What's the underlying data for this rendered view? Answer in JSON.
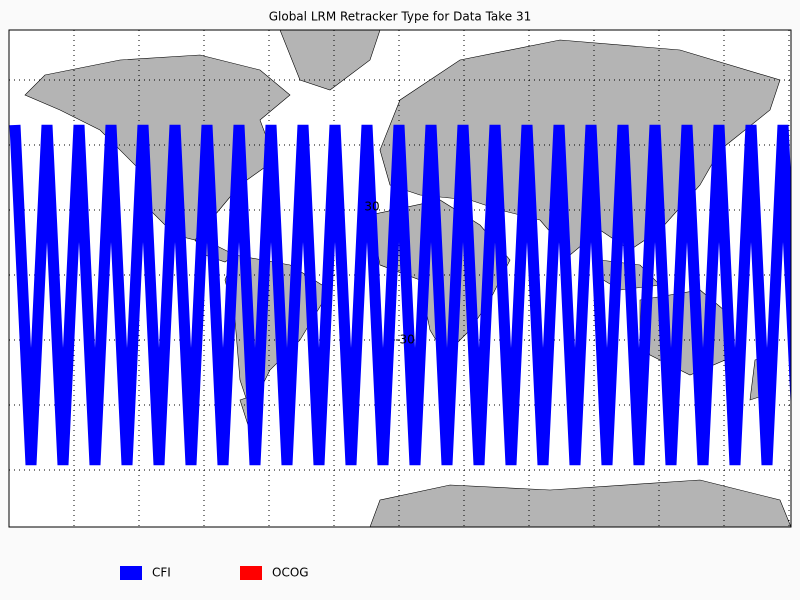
{
  "title": "Global LRM Retracker Type for Data Take 31",
  "legend": [
    {
      "label": "CFI",
      "color": "#0000ff"
    },
    {
      "label": "OCOG",
      "color": "#ff0000"
    }
  ],
  "grid_labels": [
    "30",
    "-30"
  ]
}
